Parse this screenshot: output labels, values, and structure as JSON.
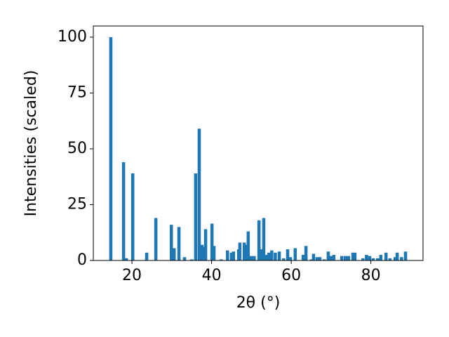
{
  "chart_data": {
    "type": "bar",
    "x_label": "2θ (°)",
    "y_label": "Intensities (scaled)",
    "x": [
      14.7,
      17.9,
      18.6,
      20.2,
      23.7,
      26.0,
      29.9,
      30.6,
      31.8,
      33.2,
      35.0,
      36.0,
      36.9,
      37.6,
      38.0,
      38.5,
      40.1,
      40.6,
      42.4,
      44.0,
      45.0,
      45.5,
      46.8,
      47.1,
      48.2,
      48.5,
      49.2,
      49.9,
      50.7,
      51.9,
      52.4,
      53.1,
      53.8,
      54.4,
      55.1,
      56.0,
      57.0,
      58.1,
      59.1,
      59.8,
      61.0,
      63.0,
      63.7,
      65.1,
      65.6,
      66.5,
      67.2,
      68.3,
      69.3,
      70.0,
      70.7,
      72.7,
      73.6,
      74.4,
      75.5,
      76.0,
      78.0,
      78.9,
      79.7,
      80.6,
      81.7,
      82.5,
      83.8,
      84.8,
      86.1,
      86.6,
      87.7,
      88.7
    ],
    "values": [
      100,
      44,
      1,
      39,
      3.5,
      19,
      16,
      5.5,
      15,
      1.5,
      0.5,
      39,
      59,
      7,
      6,
      14,
      16.5,
      6.5,
      0.5,
      4.5,
      3.5,
      4,
      5,
      8,
      8,
      7,
      13,
      2,
      2,
      18,
      5,
      19,
      2.5,
      3.5,
      4.5,
      3.5,
      4,
      1,
      5,
      1.5,
      5.5,
      2.5,
      6.5,
      0.5,
      3,
      1.5,
      1.5,
      0.5,
      4,
      2,
      2.5,
      2,
      2,
      2,
      3.5,
      3.5,
      1,
      2.5,
      2,
      1,
      1,
      2.5,
      3.5,
      1,
      1.5,
      3.5,
      1.5,
      4
    ],
    "color": "#1f77b4",
    "xlim": [
      10.3,
      93.1
    ],
    "xticks": [
      20,
      40,
      60,
      80
    ],
    "ylim": [
      0,
      105
    ],
    "yticks": [
      0,
      25,
      50,
      75,
      100
    ]
  }
}
